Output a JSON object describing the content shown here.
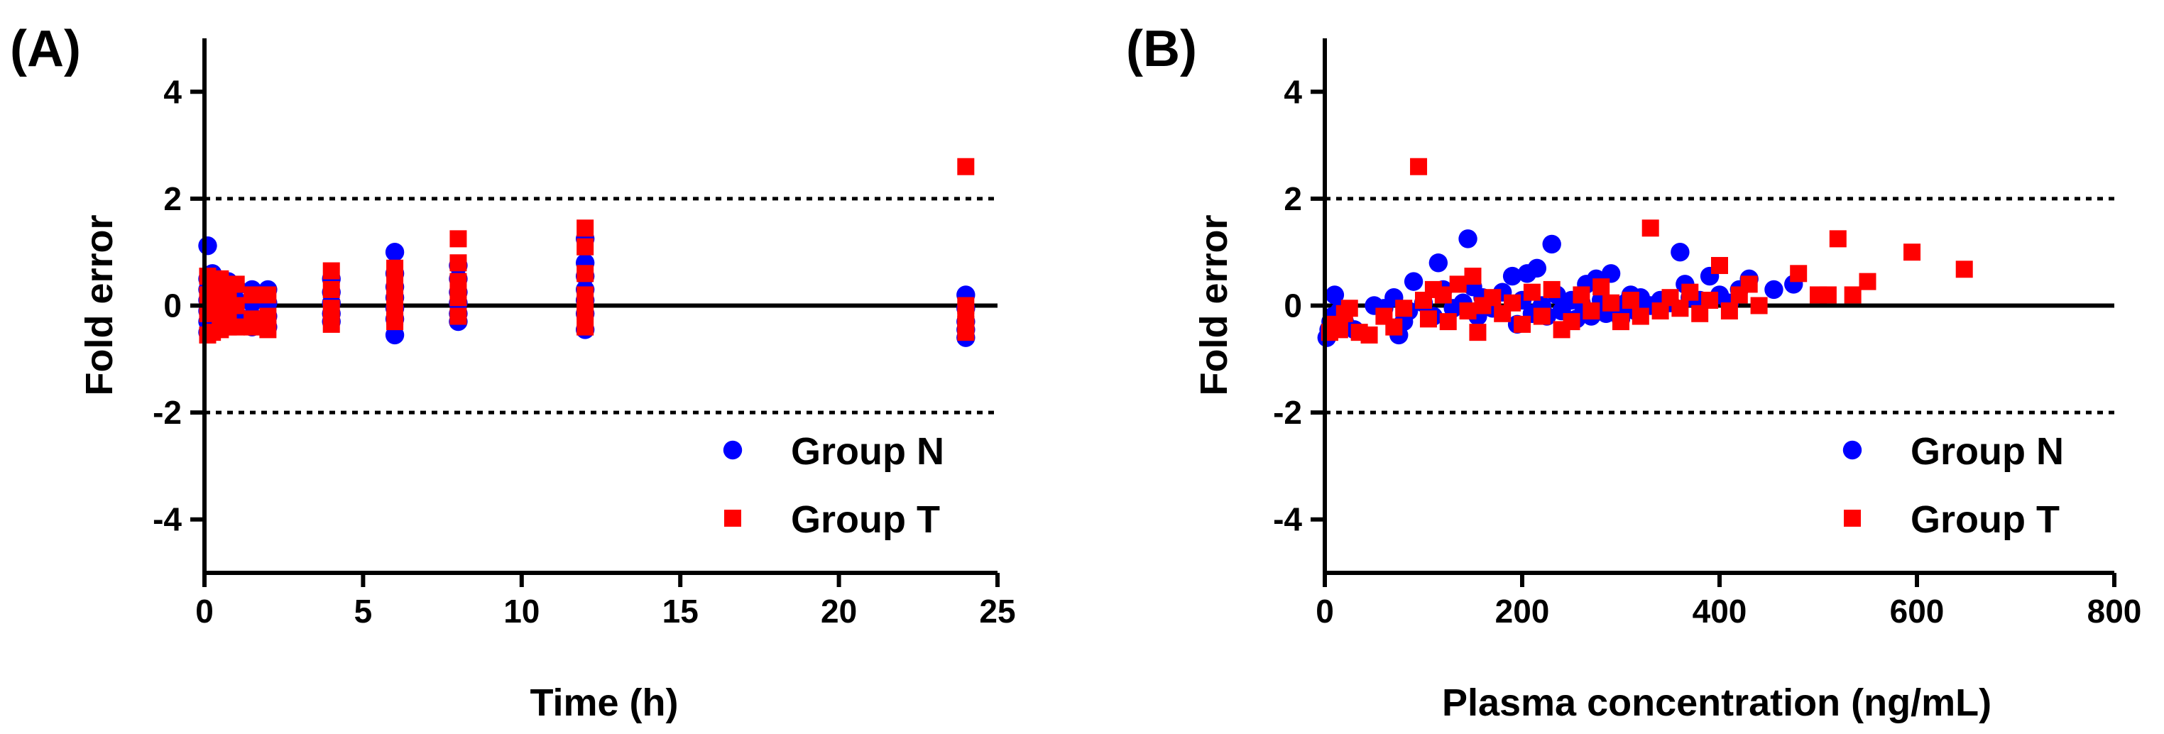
{
  "colors": {
    "group_n": "#0000ff",
    "group_t": "#ff0000",
    "axis": "#000000"
  },
  "chart_data": [
    {
      "panel_label": "(A)",
      "type": "scatter",
      "xlabel": "Time (h)",
      "ylabel": "Fold error",
      "xlim": [
        0,
        25
      ],
      "ylim": [
        -5,
        5
      ],
      "xticks": [
        0,
        5,
        10,
        15,
        20,
        25
      ],
      "yticks": [
        -4,
        -2,
        0,
        2,
        4
      ],
      "reference_lines": [
        {
          "y": 0,
          "style": "solid"
        },
        {
          "y": 2,
          "style": "dotted"
        },
        {
          "y": -2,
          "style": "dotted"
        }
      ],
      "legend": {
        "placement": "bottom-right",
        "entries": [
          "Group N",
          "Group T"
        ]
      },
      "series": [
        {
          "name": "Group N",
          "marker": "circle",
          "points": [
            [
              0.1,
              1.12
            ],
            [
              0.1,
              0.5
            ],
            [
              0.1,
              0.3
            ],
            [
              0.1,
              0.1
            ],
            [
              0.1,
              -0.1
            ],
            [
              0.1,
              -0.3
            ],
            [
              0.1,
              -0.5
            ],
            [
              0.25,
              0.6
            ],
            [
              0.25,
              0.35
            ],
            [
              0.25,
              0.1
            ],
            [
              0.25,
              -0.15
            ],
            [
              0.25,
              -0.4
            ],
            [
              0.5,
              0.4
            ],
            [
              0.5,
              0.15
            ],
            [
              0.5,
              -0.1
            ],
            [
              0.5,
              -0.35
            ],
            [
              0.75,
              0.45
            ],
            [
              0.75,
              0.2
            ],
            [
              0.75,
              -0.05
            ],
            [
              0.75,
              -0.3
            ],
            [
              1,
              0.35
            ],
            [
              1,
              0.1
            ],
            [
              1,
              -0.15
            ],
            [
              1,
              -0.35
            ],
            [
              1.5,
              0.3
            ],
            [
              1.5,
              0.05
            ],
            [
              1.5,
              -0.2
            ],
            [
              1.5,
              -0.4
            ],
            [
              2,
              0.3
            ],
            [
              2,
              0.05
            ],
            [
              2,
              -0.2
            ],
            [
              2,
              -0.4
            ],
            [
              4,
              0.5
            ],
            [
              4,
              0.25
            ],
            [
              4,
              0.05
            ],
            [
              4,
              -0.15
            ],
            [
              4,
              -0.3
            ],
            [
              6,
              1.0
            ],
            [
              6,
              0.6
            ],
            [
              6,
              0.35
            ],
            [
              6,
              0.15
            ],
            [
              6,
              -0.05
            ],
            [
              6,
              -0.25
            ],
            [
              6,
              -0.55
            ],
            [
              8,
              0.75
            ],
            [
              8,
              0.5
            ],
            [
              8,
              0.25
            ],
            [
              8,
              0.05
            ],
            [
              8,
              -0.15
            ],
            [
              8,
              -0.3
            ],
            [
              12,
              1.25
            ],
            [
              12,
              0.8
            ],
            [
              12,
              0.55
            ],
            [
              12,
              0.3
            ],
            [
              12,
              0.1
            ],
            [
              12,
              -0.15
            ],
            [
              12,
              -0.45
            ],
            [
              24,
              0.2
            ],
            [
              24,
              -0.05
            ],
            [
              24,
              -0.3
            ],
            [
              24,
              -0.45
            ],
            [
              24,
              -0.6
            ]
          ]
        },
        {
          "name": "Group T",
          "marker": "square",
          "points": [
            [
              0.1,
              0.55
            ],
            [
              0.1,
              0.2
            ],
            [
              0.1,
              -0.15
            ],
            [
              0.1,
              -0.55
            ],
            [
              0.25,
              0.45
            ],
            [
              0.25,
              0.0
            ],
            [
              0.25,
              -0.5
            ],
            [
              0.5,
              0.5
            ],
            [
              0.5,
              0.2
            ],
            [
              0.5,
              -0.2
            ],
            [
              0.5,
              -0.45
            ],
            [
              0.75,
              0.3
            ],
            [
              0.75,
              -0.1
            ],
            [
              0.75,
              -0.4
            ],
            [
              1,
              0.4
            ],
            [
              1,
              0.0
            ],
            [
              1,
              -0.4
            ],
            [
              1.5,
              0.2
            ],
            [
              1.5,
              -0.25
            ],
            [
              1.5,
              -0.4
            ],
            [
              2,
              0.2
            ],
            [
              2,
              -0.2
            ],
            [
              2,
              -0.45
            ],
            [
              4,
              0.65
            ],
            [
              4,
              0.3
            ],
            [
              4,
              -0.05
            ],
            [
              4,
              -0.35
            ],
            [
              6,
              0.7
            ],
            [
              6,
              0.4
            ],
            [
              6,
              0.1
            ],
            [
              6,
              -0.2
            ],
            [
              6,
              -0.3
            ],
            [
              8,
              1.25
            ],
            [
              8,
              0.8
            ],
            [
              8,
              0.45
            ],
            [
              8,
              0.15
            ],
            [
              8,
              -0.2
            ],
            [
              12,
              1.45
            ],
            [
              12,
              1.1
            ],
            [
              12,
              0.6
            ],
            [
              12,
              0.2
            ],
            [
              12,
              -0.1
            ],
            [
              12,
              -0.4
            ],
            [
              24,
              2.6
            ],
            [
              24,
              0.0
            ],
            [
              24,
              -0.2
            ],
            [
              24,
              -0.35
            ],
            [
              24,
              -0.5
            ]
          ]
        }
      ]
    },
    {
      "panel_label": "(B)",
      "type": "scatter",
      "xlabel": "Plasma concentration (ng/mL)",
      "ylabel": "Fold error",
      "xlim": [
        0,
        800
      ],
      "ylim": [
        -5,
        5
      ],
      "xticks": [
        0,
        200,
        400,
        600,
        800
      ],
      "yticks": [
        -4,
        -2,
        0,
        2,
        4
      ],
      "reference_lines": [
        {
          "y": 0,
          "style": "solid"
        },
        {
          "y": 2,
          "style": "dotted"
        },
        {
          "y": -2,
          "style": "dotted"
        }
      ],
      "legend": {
        "placement": "bottom-right",
        "entries": [
          "Group N",
          "Group T"
        ]
      },
      "series": [
        {
          "name": "Group N",
          "marker": "circle",
          "points": [
            [
              2,
              -0.6
            ],
            [
              4,
              -0.45
            ],
            [
              6,
              -0.3
            ],
            [
              8,
              -0.2
            ],
            [
              10,
              0.2
            ],
            [
              15,
              -0.1
            ],
            [
              20,
              -0.3
            ],
            [
              30,
              -0.45
            ],
            [
              50,
              0.0
            ],
            [
              60,
              -0.05
            ],
            [
              70,
              0.15
            ],
            [
              75,
              -0.55
            ],
            [
              80,
              -0.3
            ],
            [
              85,
              -0.1
            ],
            [
              90,
              0.45
            ],
            [
              100,
              0.05
            ],
            [
              110,
              -0.2
            ],
            [
              115,
              0.8
            ],
            [
              120,
              0.3
            ],
            [
              130,
              -0.05
            ],
            [
              140,
              0.05
            ],
            [
              145,
              1.25
            ],
            [
              150,
              0.35
            ],
            [
              155,
              -0.2
            ],
            [
              160,
              0.15
            ],
            [
              170,
              -0.05
            ],
            [
              180,
              0.25
            ],
            [
              190,
              0.55
            ],
            [
              195,
              -0.35
            ],
            [
              200,
              0.1
            ],
            [
              205,
              0.6
            ],
            [
              210,
              -0.15
            ],
            [
              215,
              0.7
            ],
            [
              220,
              0.0
            ],
            [
              225,
              -0.2
            ],
            [
              230,
              1.15
            ],
            [
              235,
              0.2
            ],
            [
              240,
              -0.1
            ],
            [
              250,
              0.1
            ],
            [
              255,
              -0.25
            ],
            [
              260,
              0.05
            ],
            [
              265,
              0.4
            ],
            [
              270,
              -0.2
            ],
            [
              275,
              0.5
            ],
            [
              280,
              0.1
            ],
            [
              285,
              -0.15
            ],
            [
              290,
              0.6
            ],
            [
              295,
              0.0
            ],
            [
              300,
              -0.25
            ],
            [
              305,
              0.05
            ],
            [
              310,
              0.2
            ],
            [
              315,
              -0.1
            ],
            [
              320,
              0.15
            ],
            [
              330,
              0.0
            ],
            [
              340,
              0.1
            ],
            [
              350,
              0.05
            ],
            [
              360,
              1.0
            ],
            [
              365,
              0.4
            ],
            [
              370,
              0.15
            ],
            [
              380,
              0.1
            ],
            [
              390,
              0.55
            ],
            [
              400,
              0.2
            ],
            [
              410,
              0.05
            ],
            [
              420,
              0.3
            ],
            [
              430,
              0.5
            ],
            [
              455,
              0.3
            ],
            [
              475,
              0.4
            ]
          ]
        },
        {
          "name": "Group T",
          "marker": "square",
          "points": [
            [
              5,
              -0.5
            ],
            [
              10,
              -0.35
            ],
            [
              15,
              -0.45
            ],
            [
              20,
              -0.15
            ],
            [
              25,
              -0.05
            ],
            [
              35,
              -0.5
            ],
            [
              45,
              -0.55
            ],
            [
              60,
              -0.2
            ],
            [
              70,
              -0.4
            ],
            [
              80,
              -0.05
            ],
            [
              95,
              2.6
            ],
            [
              100,
              0.1
            ],
            [
              105,
              -0.25
            ],
            [
              110,
              0.3
            ],
            [
              120,
              0.2
            ],
            [
              125,
              -0.3
            ],
            [
              135,
              0.4
            ],
            [
              145,
              -0.1
            ],
            [
              150,
              0.55
            ],
            [
              155,
              -0.5
            ],
            [
              160,
              0.0
            ],
            [
              170,
              0.15
            ],
            [
              180,
              -0.15
            ],
            [
              190,
              0.05
            ],
            [
              200,
              -0.35
            ],
            [
              210,
              0.25
            ],
            [
              220,
              -0.2
            ],
            [
              230,
              0.3
            ],
            [
              240,
              -0.45
            ],
            [
              250,
              -0.3
            ],
            [
              260,
              0.2
            ],
            [
              270,
              -0.1
            ],
            [
              280,
              0.35
            ],
            [
              290,
              0.05
            ],
            [
              300,
              -0.3
            ],
            [
              310,
              0.1
            ],
            [
              320,
              -0.2
            ],
            [
              330,
              1.45
            ],
            [
              340,
              -0.1
            ],
            [
              350,
              0.15
            ],
            [
              360,
              -0.05
            ],
            [
              370,
              0.25
            ],
            [
              380,
              -0.15
            ],
            [
              390,
              0.1
            ],
            [
              400,
              0.75
            ],
            [
              410,
              -0.1
            ],
            [
              420,
              0.2
            ],
            [
              430,
              0.4
            ],
            [
              440,
              0.0
            ],
            [
              480,
              0.6
            ],
            [
              500,
              0.2
            ],
            [
              510,
              0.2
            ],
            [
              520,
              1.25
            ],
            [
              535,
              0.2
            ],
            [
              550,
              0.45
            ],
            [
              595,
              1.0
            ],
            [
              648,
              0.68
            ]
          ]
        }
      ]
    }
  ]
}
